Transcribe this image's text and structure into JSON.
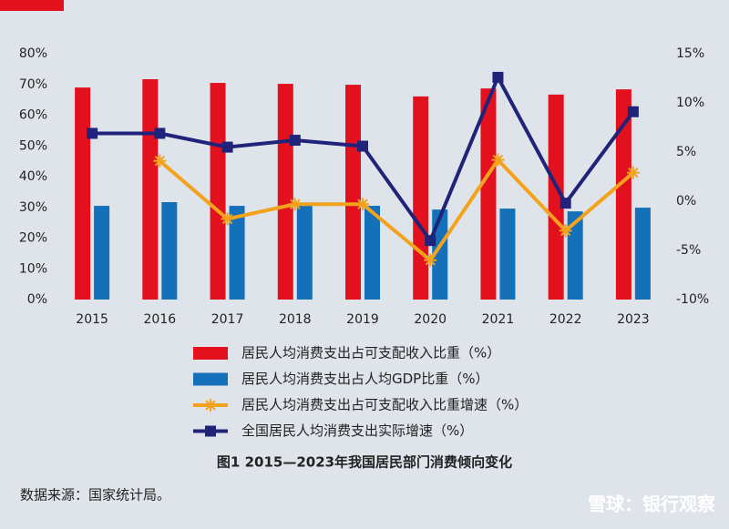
{
  "chart_data": {
    "type": "bar-line",
    "title": "图1   2015—2023年我国居民部门消费倾向变化",
    "source": "数据来源：国家统计局。",
    "watermark": "雪球：银行观察",
    "categories": [
      "2015",
      "2016",
      "2017",
      "2018",
      "2019",
      "2020",
      "2021",
      "2022",
      "2023"
    ],
    "series": [
      {
        "name": "居民人均消费支出占可支配收入比重（%）",
        "type": "bar",
        "axis": "y",
        "color": "#e3101e",
        "values": [
          69.0,
          71.7,
          70.5,
          70.2,
          69.9,
          66.1,
          68.7,
          66.7,
          68.4
        ]
      },
      {
        "name": "居民人均消费支出占人均GDP比重（%）",
        "type": "bar",
        "axis": "y",
        "color": "#1470b8",
        "values": [
          30.5,
          31.7,
          30.5,
          30.5,
          30.5,
          29.3,
          29.6,
          28.7,
          29.9
        ]
      },
      {
        "name": "居民人均消费支出占可支配收入比重增速（%）",
        "type": "line",
        "axis": "y2",
        "color": "#f2a31b",
        "marker": "star",
        "values": [
          null,
          4.1,
          -1.8,
          -0.3,
          -0.3,
          -6.0,
          4.2,
          -3.0,
          2.9
        ]
      },
      {
        "name": "全国居民人均消费支出实际增速（%）",
        "type": "line",
        "axis": "y2",
        "color": "#1f237a",
        "marker": "square",
        "values": [
          6.9,
          6.9,
          5.5,
          6.2,
          5.6,
          -4.0,
          12.6,
          -0.2,
          9.1
        ]
      }
    ],
    "ylim": [
      0,
      80
    ],
    "yticks": [
      {
        "value": 0,
        "label": "0%"
      },
      {
        "value": 10,
        "label": "10%"
      },
      {
        "value": 20,
        "label": "20%"
      },
      {
        "value": 30,
        "label": "30%"
      },
      {
        "value": 40,
        "label": "40%"
      },
      {
        "value": 50,
        "label": "50%"
      },
      {
        "value": 60,
        "label": "60%"
      },
      {
        "value": 70,
        "label": "70%"
      },
      {
        "value": 80,
        "label": "80%"
      }
    ],
    "y2lim": [
      -10,
      15
    ],
    "y2ticks": [
      {
        "value": -10,
        "label": "-10%"
      },
      {
        "value": -5,
        "label": "-5%"
      },
      {
        "value": 0,
        "label": "0%"
      },
      {
        "value": 5,
        "label": "5%"
      },
      {
        "value": 10,
        "label": "10%"
      },
      {
        "value": 15,
        "label": "15%"
      }
    ]
  }
}
